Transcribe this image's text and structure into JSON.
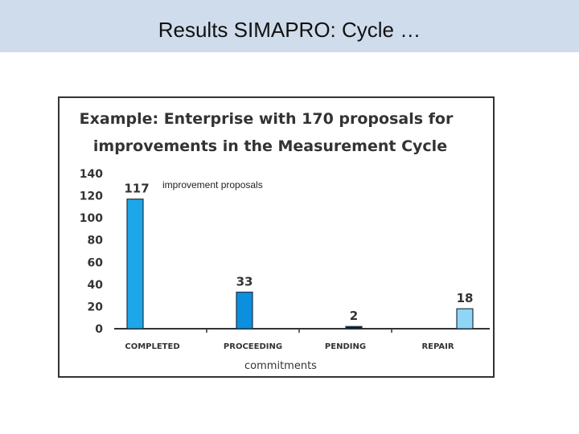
{
  "slide": {
    "title": "Results SIMAPRO: Cycle …"
  },
  "chart_data": {
    "type": "bar",
    "title_line1": "Example: Enterprise with 170 proposals for",
    "title_line2": "improvements in the Measurement Cycle",
    "categories": [
      "COMPLETED",
      "PROCEEDING",
      "PENDING",
      "REPAIR"
    ],
    "values": [
      117,
      33,
      2,
      18
    ],
    "data_labels": [
      "117",
      "33",
      "2",
      "18"
    ],
    "annotation": "improvement proposals",
    "xlabel": "commitments",
    "ylabel": "",
    "ylim": [
      0,
      140
    ],
    "yticks": [
      0,
      20,
      40,
      60,
      80,
      100,
      120,
      140
    ],
    "grid": false,
    "bar_colors": [
      "#1ea7e8",
      "#0b8fde",
      "#1a1a1a",
      "#8fd6f6"
    ],
    "bar_stroke": "#223344"
  }
}
